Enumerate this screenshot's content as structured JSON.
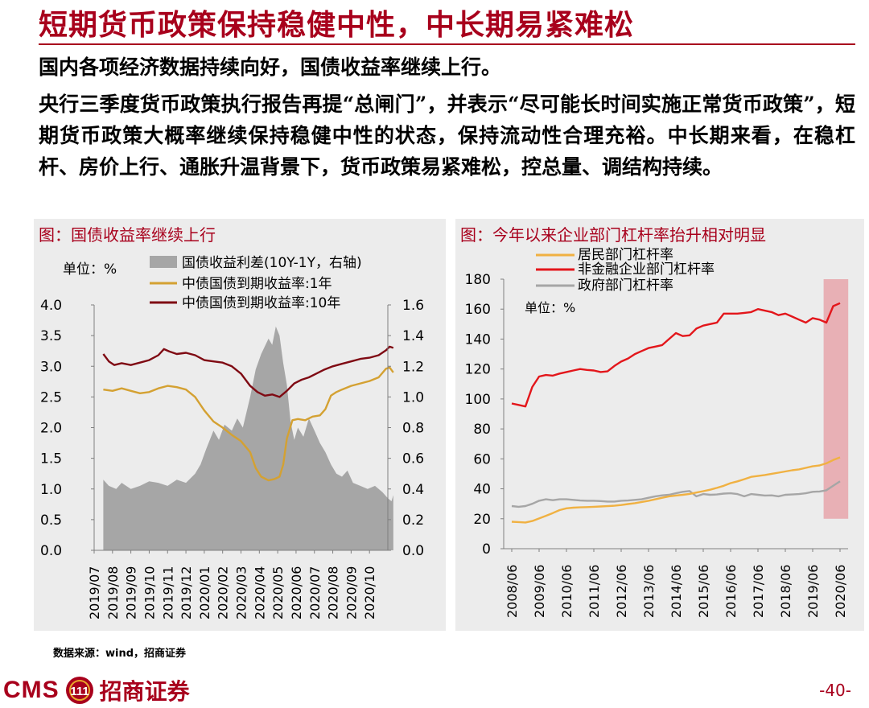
{
  "slide": {
    "title": "短期货币政策保持稳健中性，中长期易紧难松",
    "lead": "国内各项经济数据持续向好，国债收益率继续上行。",
    "body": "央行三季度货币政策执行报告再提“总闸门”，并表示“尽可能长时间实施正常货币政策”，短期货币政策大概率继续保持稳健中性的状态，保持流动性合理充裕。中长期来看，在稳杠杆、房价上行、通胀升温背景下，货币政策易紧难松，控总量、调结构持续。",
    "source": "数据来源：wind，招商证券",
    "logo_latin": "CMS",
    "logo_badge": "111",
    "logo_cn": "招商证券",
    "page_number": "-40-"
  },
  "colors": {
    "brand": "#a8001c",
    "spread_fill": "#a6a6a6",
    "yield_1y": "#d4a132",
    "yield_10y": "#7f0a13",
    "household": "#f0b142",
    "corporate": "#e3161b",
    "government": "#a6a6a6",
    "highlight": "#e8a6ab"
  },
  "chart_data": [
    {
      "type": "line",
      "panel_title": "图：国债收益率继续上行",
      "unit_label": "单位：%",
      "categories": [
        "2019/07",
        "2019/08",
        "2019/09",
        "2019/10",
        "2019/11",
        "2019/12",
        "2020/01",
        "2020/02",
        "2020/03",
        "2020/04",
        "2020/05",
        "2020/06",
        "2020/07",
        "2020/08",
        "2020/09",
        "2020/10"
      ],
      "y_left": {
        "min": 0,
        "max": 4.0,
        "ticks": [
          "0.0",
          "0.5",
          "1.0",
          "1.5",
          "2.0",
          "2.5",
          "3.0",
          "3.5",
          "4.0"
        ]
      },
      "y_right": {
        "min": 0,
        "max": 1.6,
        "ticks": [
          "0.0",
          "0.2",
          "0.4",
          "0.6",
          "0.8",
          "1.0",
          "1.2",
          "1.4",
          "1.6"
        ]
      },
      "series": [
        {
          "name": "国债收益利差(10Y-1Y，右轴)",
          "kind": "area",
          "axis": "right",
          "points": [
            [
              0,
              0.46
            ],
            [
              0.3,
              0.42
            ],
            [
              0.7,
              0.4
            ],
            [
              1.0,
              0.44
            ],
            [
              1.5,
              0.4
            ],
            [
              2.0,
              0.42
            ],
            [
              2.5,
              0.45
            ],
            [
              3.0,
              0.44
            ],
            [
              3.5,
              0.42
            ],
            [
              4.0,
              0.46
            ],
            [
              4.5,
              0.44
            ],
            [
              5.0,
              0.5
            ],
            [
              5.3,
              0.56
            ],
            [
              5.6,
              0.66
            ],
            [
              6.0,
              0.78
            ],
            [
              6.3,
              0.72
            ],
            [
              6.6,
              0.82
            ],
            [
              7.0,
              0.78
            ],
            [
              7.3,
              0.86
            ],
            [
              7.6,
              0.8
            ],
            [
              8.0,
              1.0
            ],
            [
              8.3,
              1.18
            ],
            [
              8.6,
              1.28
            ],
            [
              9.0,
              1.38
            ],
            [
              9.2,
              1.34
            ],
            [
              9.4,
              1.46
            ],
            [
              9.6,
              1.4
            ],
            [
              9.8,
              1.22
            ],
            [
              10.0,
              1.08
            ],
            [
              10.2,
              0.84
            ],
            [
              10.4,
              0.72
            ],
            [
              10.6,
              0.8
            ],
            [
              10.9,
              0.74
            ],
            [
              11.2,
              0.86
            ],
            [
              11.5,
              0.78
            ],
            [
              11.8,
              0.7
            ],
            [
              12.1,
              0.64
            ],
            [
              12.4,
              0.56
            ],
            [
              12.7,
              0.5
            ],
            [
              13.0,
              0.48
            ],
            [
              13.3,
              0.52
            ],
            [
              13.6,
              0.44
            ],
            [
              14.0,
              0.42
            ],
            [
              14.4,
              0.4
            ],
            [
              14.8,
              0.42
            ],
            [
              15.2,
              0.38
            ],
            [
              15.5,
              0.34
            ],
            [
              15.7,
              0.32
            ],
            [
              15.8,
              0.36
            ]
          ]
        },
        {
          "name": "中债国债到期收益率:1年",
          "kind": "line",
          "axis": "left",
          "points": [
            [
              0,
              2.62
            ],
            [
              0.5,
              2.6
            ],
            [
              1.0,
              2.64
            ],
            [
              1.5,
              2.6
            ],
            [
              2.0,
              2.56
            ],
            [
              2.5,
              2.58
            ],
            [
              3.0,
              2.64
            ],
            [
              3.5,
              2.68
            ],
            [
              4.0,
              2.66
            ],
            [
              4.5,
              2.62
            ],
            [
              5.0,
              2.5
            ],
            [
              5.5,
              2.28
            ],
            [
              6.0,
              2.1
            ],
            [
              6.5,
              2.0
            ],
            [
              7.0,
              1.88
            ],
            [
              7.5,
              1.78
            ],
            [
              8.0,
              1.6
            ],
            [
              8.3,
              1.34
            ],
            [
              8.6,
              1.2
            ],
            [
              9.0,
              1.14
            ],
            [
              9.3,
              1.16
            ],
            [
              9.6,
              1.2
            ],
            [
              9.8,
              1.4
            ],
            [
              10.0,
              1.82
            ],
            [
              10.3,
              2.12
            ],
            [
              10.6,
              2.14
            ],
            [
              11.0,
              2.12
            ],
            [
              11.4,
              2.18
            ],
            [
              11.8,
              2.2
            ],
            [
              12.1,
              2.3
            ],
            [
              12.4,
              2.52
            ],
            [
              12.7,
              2.58
            ],
            [
              13.0,
              2.62
            ],
            [
              13.5,
              2.68
            ],
            [
              14.0,
              2.72
            ],
            [
              14.5,
              2.76
            ],
            [
              15.0,
              2.82
            ],
            [
              15.4,
              2.96
            ],
            [
              15.6,
              2.98
            ],
            [
              15.8,
              2.9
            ]
          ]
        },
        {
          "name": "中债国债到期收益率:10年",
          "kind": "line",
          "axis": "left",
          "points": [
            [
              0,
              3.2
            ],
            [
              0.3,
              3.08
            ],
            [
              0.6,
              3.02
            ],
            [
              1.0,
              3.05
            ],
            [
              1.5,
              3.02
            ],
            [
              2.0,
              3.06
            ],
            [
              2.5,
              3.1
            ],
            [
              3.0,
              3.18
            ],
            [
              3.3,
              3.28
            ],
            [
              3.6,
              3.24
            ],
            [
              4.0,
              3.2
            ],
            [
              4.5,
              3.22
            ],
            [
              5.0,
              3.18
            ],
            [
              5.5,
              3.1
            ],
            [
              6.0,
              3.08
            ],
            [
              6.5,
              3.06
            ],
            [
              7.0,
              3.0
            ],
            [
              7.5,
              2.88
            ],
            [
              8.0,
              2.68
            ],
            [
              8.4,
              2.58
            ],
            [
              8.8,
              2.52
            ],
            [
              9.2,
              2.54
            ],
            [
              9.6,
              2.5
            ],
            [
              10.0,
              2.6
            ],
            [
              10.4,
              2.72
            ],
            [
              10.8,
              2.78
            ],
            [
              11.2,
              2.82
            ],
            [
              11.6,
              2.88
            ],
            [
              12.0,
              2.94
            ],
            [
              12.5,
              3.0
            ],
            [
              13.0,
              3.04
            ],
            [
              13.5,
              3.08
            ],
            [
              14.0,
              3.12
            ],
            [
              14.5,
              3.14
            ],
            [
              15.0,
              3.18
            ],
            [
              15.4,
              3.26
            ],
            [
              15.6,
              3.32
            ],
            [
              15.8,
              3.3
            ]
          ]
        }
      ]
    },
    {
      "type": "line",
      "panel_title": "图：今年以来企业部门杠杆率抬升相对明显",
      "unit_label": "单位：%",
      "categories": [
        "2008/06",
        "2009/06",
        "2010/06",
        "2011/06",
        "2012/06",
        "2013/06",
        "2014/06",
        "2015/06",
        "2016/06",
        "2017/06",
        "2018/06",
        "2019/06",
        "2020/06"
      ],
      "y": {
        "min": 0,
        "max": 180,
        "ticks": [
          "0",
          "20",
          "40",
          "60",
          "80",
          "100",
          "120",
          "140",
          "160",
          "180"
        ]
      },
      "highlight_range": {
        "x_from": 11.4,
        "x_to": 12.3,
        "y_from": 20,
        "y_to": 180
      },
      "series": [
        {
          "name": "居民部门杠杆率",
          "x": [
            0,
            0.25,
            0.5,
            0.75,
            1,
            1.25,
            1.5,
            1.75,
            2,
            2.25,
            2.5,
            2.75,
            3,
            3.25,
            3.5,
            3.75,
            4,
            4.25,
            4.5,
            4.75,
            5,
            5.25,
            5.5,
            5.75,
            6,
            6.25,
            6.5,
            6.75,
            7,
            7.25,
            7.5,
            7.75,
            8,
            8.25,
            8.5,
            8.75,
            9,
            9.25,
            9.5,
            9.75,
            10,
            10.25,
            10.5,
            10.75,
            11,
            11.25,
            11.5,
            11.75,
            12
          ],
          "values": [
            18.0,
            17.8,
            17.5,
            18.5,
            20.2,
            22.0,
            23.8,
            25.8,
            27.0,
            27.4,
            27.6,
            27.8,
            28.0,
            28.2,
            28.4,
            28.7,
            29.2,
            29.8,
            30.4,
            31.2,
            32.0,
            33.0,
            34.0,
            35.0,
            35.5,
            36.0,
            36.6,
            37.5,
            38.4,
            39.4,
            40.6,
            42.0,
            43.8,
            45.0,
            46.4,
            48.0,
            48.6,
            49.2,
            50.0,
            50.8,
            51.6,
            52.4,
            53.0,
            54.0,
            55.0,
            55.6,
            57.0,
            59.2,
            61.0
          ]
        },
        {
          "name": "非金融企业部门杠杆率",
          "x": [
            0,
            0.25,
            0.5,
            0.75,
            1,
            1.25,
            1.5,
            1.75,
            2,
            2.25,
            2.5,
            2.75,
            3,
            3.25,
            3.5,
            3.75,
            4,
            4.25,
            4.5,
            4.75,
            5,
            5.25,
            5.5,
            5.75,
            6,
            6.25,
            6.5,
            6.75,
            7,
            7.25,
            7.5,
            7.75,
            8,
            8.25,
            8.5,
            8.75,
            9,
            9.25,
            9.5,
            9.75,
            10,
            10.25,
            10.5,
            10.75,
            11,
            11.25,
            11.5,
            11.75,
            12
          ],
          "values": [
            97.0,
            96.0,
            95.0,
            108.0,
            115.0,
            116.0,
            115.6,
            117.0,
            118.0,
            119.0,
            120.0,
            119.4,
            119.0,
            118.0,
            118.4,
            122.0,
            125.0,
            127.0,
            130.0,
            132.0,
            134.0,
            135.0,
            136.0,
            140.0,
            144.0,
            142.0,
            142.5,
            147.0,
            149.0,
            150.0,
            151.0,
            157.0,
            157.0,
            157.0,
            157.5,
            158.0,
            160.0,
            159.0,
            158.0,
            156.0,
            157.0,
            155.0,
            153.0,
            151.0,
            154.0,
            153.0,
            151.0,
            162.0,
            164.0
          ]
        },
        {
          "name": "政府部门杠杆率",
          "x": [
            0,
            0.25,
            0.5,
            0.75,
            1,
            1.25,
            1.5,
            1.75,
            2,
            2.25,
            2.5,
            2.75,
            3,
            3.25,
            3.5,
            3.75,
            4,
            4.25,
            4.5,
            4.75,
            5,
            5.25,
            5.5,
            5.75,
            6,
            6.25,
            6.5,
            6.75,
            7,
            7.25,
            7.5,
            7.75,
            8,
            8.25,
            8.5,
            8.75,
            9,
            9.25,
            9.5,
            9.75,
            10,
            10.25,
            10.5,
            10.75,
            11,
            11.25,
            11.5,
            11.75,
            12
          ],
          "values": [
            28.5,
            28.0,
            28.5,
            30.0,
            32.0,
            33.0,
            32.4,
            33.0,
            33.0,
            32.6,
            32.2,
            32.0,
            32.0,
            31.8,
            31.5,
            31.5,
            32.0,
            32.2,
            32.6,
            33.0,
            34.0,
            35.0,
            35.6,
            36.0,
            37.0,
            38.0,
            38.5,
            35.0,
            36.5,
            36.0,
            36.2,
            36.8,
            37.0,
            36.5,
            35.0,
            36.5,
            36.0,
            35.5,
            35.6,
            35.0,
            36.0,
            36.2,
            36.5,
            37.0,
            38.0,
            38.2,
            39.0,
            42.0,
            45.0
          ]
        }
      ]
    }
  ]
}
